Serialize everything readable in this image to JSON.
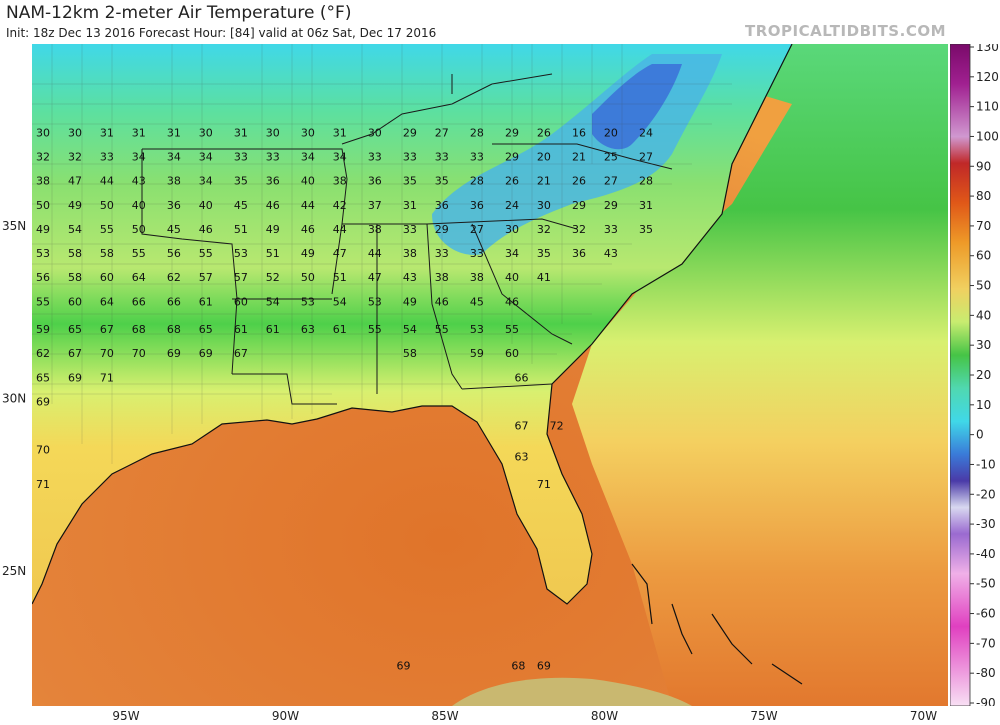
{
  "header": {
    "title": "NAM-12km 2-meter Air Temperature (°F)",
    "subtitle": "Init: 18z Dec 13 2016   Forecast Hour: [84]   valid at 06z Sat, Dec 17 2016",
    "credit": "TROPICALTIDBITS.COM"
  },
  "axes": {
    "lat_labels": [
      "35N",
      "30N",
      "25N"
    ],
    "lon_labels": [
      "95W",
      "90W",
      "85W",
      "80W",
      "75W",
      "70W"
    ]
  },
  "colorbar": {
    "ticks": [
      "130",
      "120",
      "110",
      "100",
      "90",
      "80",
      "70",
      "60",
      "50",
      "40",
      "30",
      "20",
      "10",
      "0",
      "-10",
      "-20",
      "-30",
      "-40",
      "-50",
      "-60",
      "-70",
      "-80",
      "-90"
    ],
    "colors": [
      "#7a0a6a",
      "#a0208f",
      "#c050b8",
      "#d888d0",
      "#c02828",
      "#d84818",
      "#e87a18",
      "#f0c850",
      "#d8f070",
      "#46c446",
      "#40d8e8",
      "#3a7ad8",
      "#4a3aa8",
      "#9a9ad8",
      "#d0d0f0",
      "#f0a0e0",
      "#e040c0",
      "#f8d0f0"
    ]
  },
  "map_labels": [
    {
      "t": "30",
      "lon": -97.6,
      "lat": 37.6
    },
    {
      "t": "30",
      "lon": -96.6,
      "lat": 37.6
    },
    {
      "t": "31",
      "lon": -95.6,
      "lat": 37.6
    },
    {
      "t": "31",
      "lon": -94.6,
      "lat": 37.6
    },
    {
      "t": "31",
      "lon": -93.5,
      "lat": 37.6
    },
    {
      "t": "30",
      "lon": -92.5,
      "lat": 37.6
    },
    {
      "t": "31",
      "lon": -91.4,
      "lat": 37.6
    },
    {
      "t": "30",
      "lon": -90.4,
      "lat": 37.6
    },
    {
      "t": "30",
      "lon": -89.3,
      "lat": 37.6
    },
    {
      "t": "31",
      "lon": -88.3,
      "lat": 37.6
    },
    {
      "t": "30",
      "lon": -87.2,
      "lat": 37.6
    },
    {
      "t": "29",
      "lon": -86.1,
      "lat": 37.6
    },
    {
      "t": "27",
      "lon": -85.1,
      "lat": 37.6
    },
    {
      "t": "28",
      "lon": -84.0,
      "lat": 37.6
    },
    {
      "t": "29",
      "lon": -82.9,
      "lat": 37.6
    },
    {
      "t": "26",
      "lon": -81.9,
      "lat": 37.6
    },
    {
      "t": "16",
      "lon": -80.8,
      "lat": 37.6
    },
    {
      "t": "20",
      "lon": -79.8,
      "lat": 37.6
    },
    {
      "t": "24",
      "lon": -78.7,
      "lat": 37.6
    },
    {
      "t": "32",
      "lon": -97.6,
      "lat": 36.9
    },
    {
      "t": "32",
      "lon": -96.6,
      "lat": 36.9
    },
    {
      "t": "33",
      "lon": -95.6,
      "lat": 36.9
    },
    {
      "t": "34",
      "lon": -94.6,
      "lat": 36.9
    },
    {
      "t": "34",
      "lon": -93.5,
      "lat": 36.9
    },
    {
      "t": "34",
      "lon": -92.5,
      "lat": 36.9
    },
    {
      "t": "33",
      "lon": -91.4,
      "lat": 36.9
    },
    {
      "t": "33",
      "lon": -90.4,
      "lat": 36.9
    },
    {
      "t": "34",
      "lon": -89.3,
      "lat": 36.9
    },
    {
      "t": "34",
      "lon": -88.3,
      "lat": 36.9
    },
    {
      "t": "33",
      "lon": -87.2,
      "lat": 36.9
    },
    {
      "t": "33",
      "lon": -86.1,
      "lat": 36.9
    },
    {
      "t": "33",
      "lon": -85.1,
      "lat": 36.9
    },
    {
      "t": "33",
      "lon": -84.0,
      "lat": 36.9
    },
    {
      "t": "29",
      "lon": -82.9,
      "lat": 36.9
    },
    {
      "t": "20",
      "lon": -81.9,
      "lat": 36.9
    },
    {
      "t": "21",
      "lon": -80.8,
      "lat": 36.9
    },
    {
      "t": "25",
      "lon": -79.8,
      "lat": 36.9
    },
    {
      "t": "27",
      "lon": -78.7,
      "lat": 36.9
    },
    {
      "t": "38",
      "lon": -97.6,
      "lat": 36.2
    },
    {
      "t": "47",
      "lon": -96.6,
      "lat": 36.2
    },
    {
      "t": "44",
      "lon": -95.6,
      "lat": 36.2
    },
    {
      "t": "43",
      "lon": -94.6,
      "lat": 36.2
    },
    {
      "t": "38",
      "lon": -93.5,
      "lat": 36.2
    },
    {
      "t": "34",
      "lon": -92.5,
      "lat": 36.2
    },
    {
      "t": "35",
      "lon": -91.4,
      "lat": 36.2
    },
    {
      "t": "36",
      "lon": -90.4,
      "lat": 36.2
    },
    {
      "t": "40",
      "lon": -89.3,
      "lat": 36.2
    },
    {
      "t": "38",
      "lon": -88.3,
      "lat": 36.2
    },
    {
      "t": "36",
      "lon": -87.2,
      "lat": 36.2
    },
    {
      "t": "35",
      "lon": -86.1,
      "lat": 36.2
    },
    {
      "t": "35",
      "lon": -85.1,
      "lat": 36.2
    },
    {
      "t": "28",
      "lon": -84.0,
      "lat": 36.2
    },
    {
      "t": "26",
      "lon": -82.9,
      "lat": 36.2
    },
    {
      "t": "21",
      "lon": -81.9,
      "lat": 36.2
    },
    {
      "t": "26",
      "lon": -80.8,
      "lat": 36.2
    },
    {
      "t": "27",
      "lon": -79.8,
      "lat": 36.2
    },
    {
      "t": "28",
      "lon": -78.7,
      "lat": 36.2
    },
    {
      "t": "50",
      "lon": -97.6,
      "lat": 35.5
    },
    {
      "t": "49",
      "lon": -96.6,
      "lat": 35.5
    },
    {
      "t": "50",
      "lon": -95.6,
      "lat": 35.5
    },
    {
      "t": "40",
      "lon": -94.6,
      "lat": 35.5
    },
    {
      "t": "36",
      "lon": -93.5,
      "lat": 35.5
    },
    {
      "t": "40",
      "lon": -92.5,
      "lat": 35.5
    },
    {
      "t": "45",
      "lon": -91.4,
      "lat": 35.5
    },
    {
      "t": "46",
      "lon": -90.4,
      "lat": 35.5
    },
    {
      "t": "44",
      "lon": -89.3,
      "lat": 35.5
    },
    {
      "t": "42",
      "lon": -88.3,
      "lat": 35.5
    },
    {
      "t": "37",
      "lon": -87.2,
      "lat": 35.5
    },
    {
      "t": "31",
      "lon": -86.1,
      "lat": 35.5
    },
    {
      "t": "36",
      "lon": -85.1,
      "lat": 35.5
    },
    {
      "t": "36",
      "lon": -84.0,
      "lat": 35.5
    },
    {
      "t": "24",
      "lon": -82.9,
      "lat": 35.5
    },
    {
      "t": "30",
      "lon": -81.9,
      "lat": 35.5
    },
    {
      "t": "29",
      "lon": -80.8,
      "lat": 35.5
    },
    {
      "t": "29",
      "lon": -79.8,
      "lat": 35.5
    },
    {
      "t": "31",
      "lon": -78.7,
      "lat": 35.5
    },
    {
      "t": "49",
      "lon": -97.6,
      "lat": 34.8
    },
    {
      "t": "54",
      "lon": -96.6,
      "lat": 34.8
    },
    {
      "t": "55",
      "lon": -95.6,
      "lat": 34.8
    },
    {
      "t": "50",
      "lon": -94.6,
      "lat": 34.8
    },
    {
      "t": "45",
      "lon": -93.5,
      "lat": 34.8
    },
    {
      "t": "46",
      "lon": -92.5,
      "lat": 34.8
    },
    {
      "t": "51",
      "lon": -91.4,
      "lat": 34.8
    },
    {
      "t": "49",
      "lon": -90.4,
      "lat": 34.8
    },
    {
      "t": "46",
      "lon": -89.3,
      "lat": 34.8
    },
    {
      "t": "44",
      "lon": -88.3,
      "lat": 34.8
    },
    {
      "t": "38",
      "lon": -87.2,
      "lat": 34.8
    },
    {
      "t": "33",
      "lon": -86.1,
      "lat": 34.8
    },
    {
      "t": "29",
      "lon": -85.1,
      "lat": 34.8
    },
    {
      "t": "27",
      "lon": -84.0,
      "lat": 34.8
    },
    {
      "t": "30",
      "lon": -82.9,
      "lat": 34.8
    },
    {
      "t": "32",
      "lon": -81.9,
      "lat": 34.8
    },
    {
      "t": "32",
      "lon": -80.8,
      "lat": 34.8
    },
    {
      "t": "33",
      "lon": -79.8,
      "lat": 34.8
    },
    {
      "t": "35",
      "lon": -78.7,
      "lat": 34.8
    },
    {
      "t": "53",
      "lon": -97.6,
      "lat": 34.1
    },
    {
      "t": "58",
      "lon": -96.6,
      "lat": 34.1
    },
    {
      "t": "58",
      "lon": -95.6,
      "lat": 34.1
    },
    {
      "t": "55",
      "lon": -94.6,
      "lat": 34.1
    },
    {
      "t": "56",
      "lon": -93.5,
      "lat": 34.1
    },
    {
      "t": "55",
      "lon": -92.5,
      "lat": 34.1
    },
    {
      "t": "53",
      "lon": -91.4,
      "lat": 34.1
    },
    {
      "t": "51",
      "lon": -90.4,
      "lat": 34.1
    },
    {
      "t": "49",
      "lon": -89.3,
      "lat": 34.1
    },
    {
      "t": "47",
      "lon": -88.3,
      "lat": 34.1
    },
    {
      "t": "44",
      "lon": -87.2,
      "lat": 34.1
    },
    {
      "t": "38",
      "lon": -86.1,
      "lat": 34.1
    },
    {
      "t": "33",
      "lon": -85.1,
      "lat": 34.1
    },
    {
      "t": "33",
      "lon": -84.0,
      "lat": 34.1
    },
    {
      "t": "34",
      "lon": -82.9,
      "lat": 34.1
    },
    {
      "t": "35",
      "lon": -81.9,
      "lat": 34.1
    },
    {
      "t": "36",
      "lon": -80.8,
      "lat": 34.1
    },
    {
      "t": "43",
      "lon": -79.8,
      "lat": 34.1
    },
    {
      "t": "56",
      "lon": -97.6,
      "lat": 33.4
    },
    {
      "t": "58",
      "lon": -96.6,
      "lat": 33.4
    },
    {
      "t": "60",
      "lon": -95.6,
      "lat": 33.4
    },
    {
      "t": "64",
      "lon": -94.6,
      "lat": 33.4
    },
    {
      "t": "62",
      "lon": -93.5,
      "lat": 33.4
    },
    {
      "t": "57",
      "lon": -92.5,
      "lat": 33.4
    },
    {
      "t": "57",
      "lon": -91.4,
      "lat": 33.4
    },
    {
      "t": "52",
      "lon": -90.4,
      "lat": 33.4
    },
    {
      "t": "50",
      "lon": -89.3,
      "lat": 33.4
    },
    {
      "t": "51",
      "lon": -88.3,
      "lat": 33.4
    },
    {
      "t": "47",
      "lon": -87.2,
      "lat": 33.4
    },
    {
      "t": "43",
      "lon": -86.1,
      "lat": 33.4
    },
    {
      "t": "38",
      "lon": -85.1,
      "lat": 33.4
    },
    {
      "t": "38",
      "lon": -84.0,
      "lat": 33.4
    },
    {
      "t": "40",
      "lon": -82.9,
      "lat": 33.4
    },
    {
      "t": "41",
      "lon": -81.9,
      "lat": 33.4
    },
    {
      "t": "55",
      "lon": -97.6,
      "lat": 32.7
    },
    {
      "t": "60",
      "lon": -96.6,
      "lat": 32.7
    },
    {
      "t": "64",
      "lon": -95.6,
      "lat": 32.7
    },
    {
      "t": "66",
      "lon": -94.6,
      "lat": 32.7
    },
    {
      "t": "66",
      "lon": -93.5,
      "lat": 32.7
    },
    {
      "t": "61",
      "lon": -92.5,
      "lat": 32.7
    },
    {
      "t": "60",
      "lon": -91.4,
      "lat": 32.7
    },
    {
      "t": "54",
      "lon": -90.4,
      "lat": 32.7
    },
    {
      "t": "53",
      "lon": -89.3,
      "lat": 32.7
    },
    {
      "t": "54",
      "lon": -88.3,
      "lat": 32.7
    },
    {
      "t": "53",
      "lon": -87.2,
      "lat": 32.7
    },
    {
      "t": "49",
      "lon": -86.1,
      "lat": 32.7
    },
    {
      "t": "46",
      "lon": -85.1,
      "lat": 32.7
    },
    {
      "t": "45",
      "lon": -84.0,
      "lat": 32.7
    },
    {
      "t": "46",
      "lon": -82.9,
      "lat": 32.7
    },
    {
      "t": "59",
      "lon": -97.6,
      "lat": 31.9
    },
    {
      "t": "65",
      "lon": -96.6,
      "lat": 31.9
    },
    {
      "t": "67",
      "lon": -95.6,
      "lat": 31.9
    },
    {
      "t": "68",
      "lon": -94.6,
      "lat": 31.9
    },
    {
      "t": "68",
      "lon": -93.5,
      "lat": 31.9
    },
    {
      "t": "65",
      "lon": -92.5,
      "lat": 31.9
    },
    {
      "t": "61",
      "lon": -91.4,
      "lat": 31.9
    },
    {
      "t": "61",
      "lon": -90.4,
      "lat": 31.9
    },
    {
      "t": "63",
      "lon": -89.3,
      "lat": 31.9
    },
    {
      "t": "61",
      "lon": -88.3,
      "lat": 31.9
    },
    {
      "t": "55",
      "lon": -87.2,
      "lat": 31.9
    },
    {
      "t": "54",
      "lon": -86.1,
      "lat": 31.9
    },
    {
      "t": "55",
      "lon": -85.1,
      "lat": 31.9
    },
    {
      "t": "53",
      "lon": -84.0,
      "lat": 31.9
    },
    {
      "t": "55",
      "lon": -82.9,
      "lat": 31.9
    },
    {
      "t": "62",
      "lon": -97.6,
      "lat": 31.2
    },
    {
      "t": "67",
      "lon": -96.6,
      "lat": 31.2
    },
    {
      "t": "70",
      "lon": -95.6,
      "lat": 31.2
    },
    {
      "t": "70",
      "lon": -94.6,
      "lat": 31.2
    },
    {
      "t": "69",
      "lon": -93.5,
      "lat": 31.2
    },
    {
      "t": "69",
      "lon": -92.5,
      "lat": 31.2
    },
    {
      "t": "67",
      "lon": -91.4,
      "lat": 31.2
    },
    {
      "t": "58",
      "lon": -86.1,
      "lat": 31.2
    },
    {
      "t": "59",
      "lon": -84.0,
      "lat": 31.2
    },
    {
      "t": "60",
      "lon": -82.9,
      "lat": 31.2
    },
    {
      "t": "65",
      "lon": -97.6,
      "lat": 30.5
    },
    {
      "t": "69",
      "lon": -96.6,
      "lat": 30.5
    },
    {
      "t": "71",
      "lon": -95.6,
      "lat": 30.5
    },
    {
      "t": "66",
      "lon": -82.6,
      "lat": 30.5
    },
    {
      "t": "69",
      "lon": -97.6,
      "lat": 29.8
    },
    {
      "t": "67",
      "lon": -82.6,
      "lat": 29.1
    },
    {
      "t": "72",
      "lon": -81.5,
      "lat": 29.1
    },
    {
      "t": "70",
      "lon": -97.6,
      "lat": 28.4
    },
    {
      "t": "63",
      "lon": -82.6,
      "lat": 28.2
    },
    {
      "t": "71",
      "lon": -97.6,
      "lat": 27.4
    },
    {
      "t": "71",
      "lon": -81.9,
      "lat": 27.4
    },
    {
      "t": "69",
      "lon": -86.3,
      "lat": 22.15
    },
    {
      "t": "68",
      "lon": -82.7,
      "lat": 22.15
    },
    {
      "t": "69",
      "lon": -81.9,
      "lat": 22.15
    }
  ]
}
